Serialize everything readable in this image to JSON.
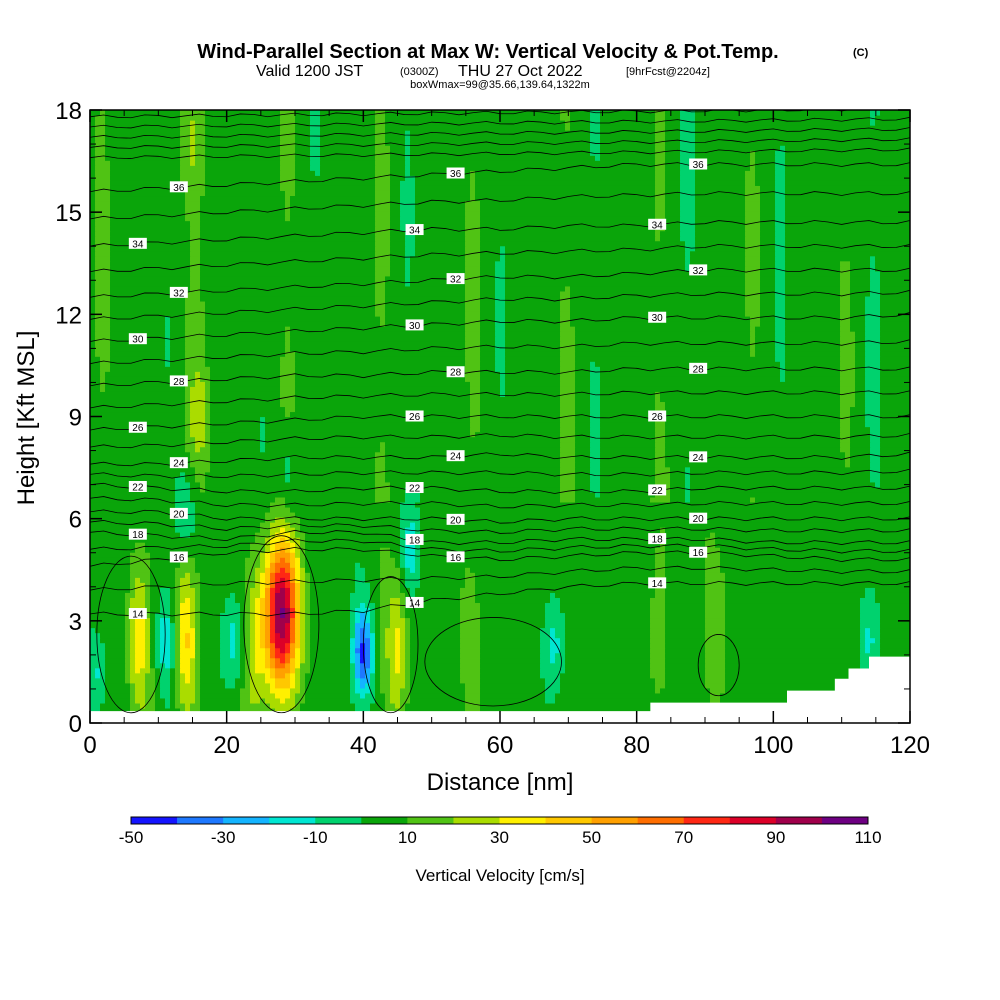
{
  "header": {
    "title": "Wind-Parallel Section at Max W: Vertical Velocity & Pot.Temp.",
    "copyright": "(C)",
    "valid_prefix": "Valid 1200 JST",
    "valid_utc": "(0300Z)",
    "valid_date": "THU 27 Oct 2022",
    "forecast": "[9hrFcst@2204z]",
    "box_info": "boxWmax=99@35.66,139.64,1322m"
  },
  "chart_data": {
    "type": "heatmap",
    "xlabel": "Distance [nm]",
    "ylabel": "Height [Kft MSL]",
    "xlim": [
      0,
      120
    ],
    "ylim": [
      0,
      18
    ],
    "xticks": [
      0,
      20,
      40,
      60,
      80,
      100,
      120
    ],
    "yticks": [
      0,
      3,
      6,
      9,
      12,
      15,
      18
    ],
    "colorbar": {
      "label": "Vertical Velocity [cm/s]",
      "tick_labels": [
        "-50",
        "-30",
        "-10",
        "10",
        "30",
        "50",
        "70",
        "90",
        "110"
      ],
      "levels": [
        -50,
        -40,
        -30,
        -20,
        -10,
        0,
        10,
        20,
        30,
        40,
        50,
        60,
        70,
        80,
        90,
        100,
        110
      ],
      "colors": [
        "#1414ff",
        "#1e78ff",
        "#14b4ff",
        "#00e6d2",
        "#00d26e",
        "#0aa50a",
        "#50c314",
        "#aadc00",
        "#fff000",
        "#ffc800",
        "#ffa000",
        "#ff6e00",
        "#ff2814",
        "#dc0028",
        "#a0004b",
        "#6e0082"
      ]
    },
    "background_w": 5,
    "updraft_cores": [
      {
        "x": 28,
        "z": 3.2,
        "w": 100
      },
      {
        "x": 45,
        "z": 2.2,
        "w": 35
      },
      {
        "x": 14,
        "z": 2.5,
        "w": 40
      },
      {
        "x": 7,
        "z": 2.4,
        "w": 35
      },
      {
        "x": 24,
        "z": 2.0,
        "w": 25
      },
      {
        "x": 55,
        "z": 2.6,
        "w": 14
      },
      {
        "x": 92,
        "z": 2.7,
        "w": 18
      },
      {
        "x": 83,
        "z": 2.4,
        "w": 12
      },
      {
        "x": 15,
        "z": 17.0,
        "w": 18
      },
      {
        "x": 16,
        "z": 9.0,
        "w": 22
      }
    ],
    "downdraft_cores": [
      {
        "x": 40,
        "z": 2.1,
        "w": -40
      },
      {
        "x": 11,
        "z": 2.4,
        "w": -15
      },
      {
        "x": 47,
        "z": 5.1,
        "w": -15
      },
      {
        "x": 29,
        "z": 7.2,
        "w": -12
      },
      {
        "x": 14,
        "z": 6.2,
        "w": -12
      },
      {
        "x": 21,
        "z": 2.4,
        "w": -14
      },
      {
        "x": 1,
        "z": 1.5,
        "w": -14
      },
      {
        "x": 68,
        "z": 2.3,
        "w": -12
      },
      {
        "x": 114,
        "z": 2.5,
        "w": -10
      }
    ],
    "theta_contours": [
      {
        "label": "14",
        "z": [
          3.2,
          3.2,
          3.2,
          3.2,
          3.3,
          3.6,
          3.8,
          4.0,
          4.1,
          4.1,
          4.1,
          4.1,
          4.1
        ]
      },
      {
        "label": "16",
        "z": [
          4.6,
          4.8,
          5.0,
          5.1,
          5.1,
          4.9,
          4.8,
          4.9,
          5.0,
          5.0,
          4.9,
          4.8,
          4.8
        ]
      },
      {
        "label": "18",
        "z": [
          5.6,
          5.5,
          5.4,
          5.6,
          5.6,
          5.3,
          5.3,
          5.4,
          5.4,
          5.4,
          5.3,
          5.3,
          5.3
        ]
      },
      {
        "label": "20",
        "z": [
          6.2,
          6.2,
          6.0,
          6.0,
          6.0,
          6.0,
          5.9,
          6.0,
          6.0,
          6.0,
          6.0,
          6.0,
          6.0
        ]
      },
      {
        "label": "22",
        "z": [
          7.0,
          6.9,
          6.8,
          6.8,
          6.9,
          6.9,
          6.8,
          6.8,
          6.8,
          6.9,
          6.9,
          6.9,
          6.9
        ]
      },
      {
        "label": "24",
        "z": [
          7.6,
          7.6,
          7.7,
          7.8,
          7.8,
          7.8,
          7.9,
          7.8,
          7.8,
          7.8,
          7.8,
          7.8,
          7.9
        ]
      },
      {
        "label": "26",
        "z": [
          8.6,
          8.7,
          8.8,
          8.9,
          9.0,
          9.0,
          9.0,
          9.0,
          9.0,
          9.0,
          9.0,
          9.0,
          9.0
        ]
      },
      {
        "label": "28",
        "z": [
          9.9,
          10.0,
          10.1,
          10.2,
          10.2,
          10.3,
          10.3,
          10.3,
          10.4,
          10.4,
          10.4,
          10.4,
          10.4
        ]
      },
      {
        "label": "30",
        "z": [
          11.2,
          11.3,
          11.4,
          11.5,
          11.6,
          11.7,
          11.8,
          11.8,
          11.9,
          11.9,
          11.9,
          11.9,
          12.0
        ]
      },
      {
        "label": "32",
        "z": [
          12.5,
          12.6,
          12.7,
          12.8,
          12.9,
          13.0,
          13.1,
          13.1,
          13.2,
          13.3,
          13.3,
          13.3,
          13.3
        ]
      },
      {
        "label": "34",
        "z": [
          14.0,
          14.1,
          14.2,
          14.3,
          14.4,
          14.5,
          14.5,
          14.6,
          14.6,
          14.7,
          14.7,
          14.7,
          14.7
        ]
      },
      {
        "label": "36",
        "z": [
          15.6,
          15.7,
          15.8,
          15.9,
          16.0,
          16.1,
          16.2,
          16.3,
          16.4,
          16.4,
          16.4,
          16.4,
          16.4
        ]
      }
    ],
    "theta_contour_x": [
      0,
      10,
      20,
      30,
      40,
      50,
      60,
      70,
      80,
      90,
      100,
      110,
      120
    ],
    "upper_contour_lines_z": [
      16.6,
      16.9,
      17.2,
      17.5,
      17.8
    ],
    "terrain": [
      [
        0,
        0.35
      ],
      [
        82,
        0.35
      ],
      [
        82,
        0.6
      ],
      [
        102,
        0.6
      ],
      [
        102,
        0.95
      ],
      [
        109,
        0.95
      ],
      [
        109,
        1.3
      ],
      [
        111,
        1.3
      ],
      [
        111,
        1.6
      ],
      [
        114,
        1.6
      ],
      [
        114,
        1.95
      ],
      [
        120,
        1.95
      ]
    ]
  }
}
